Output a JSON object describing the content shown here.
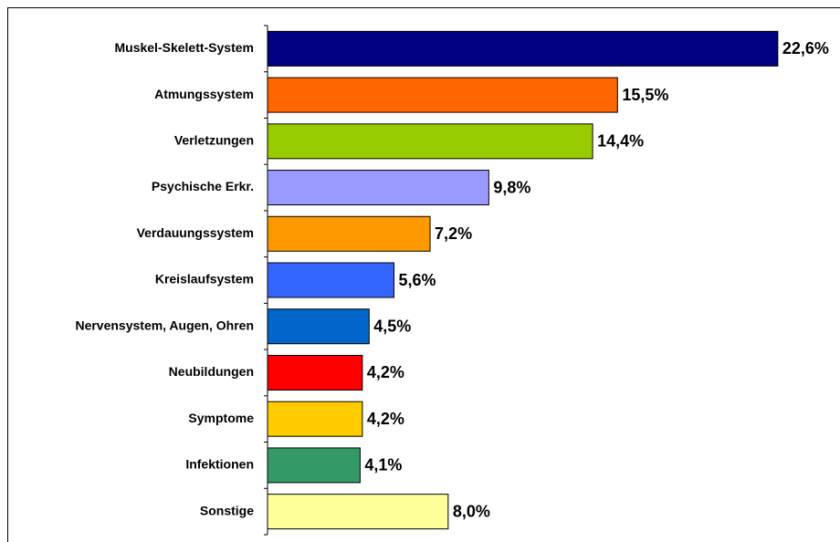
{
  "chart_data": {
    "type": "bar",
    "orientation": "horizontal",
    "categories": [
      "Muskel-Skelett-System",
      "Atmungssystem",
      "Verletzungen",
      "Psychische Erkr.",
      "Verdauungssystem",
      "Kreislaufsystem",
      "Nervensystem, Augen, Ohren",
      "Neubildungen",
      "Symptome",
      "Infektionen",
      "Sonstige"
    ],
    "values": [
      22.6,
      15.5,
      14.4,
      9.8,
      7.2,
      5.6,
      4.5,
      4.2,
      4.2,
      4.1,
      8.0
    ],
    "value_labels": [
      "22,6%",
      "15,5%",
      "14,4%",
      "9,8%",
      "7,2%",
      "5,6%",
      "4,5%",
      "4,2%",
      "4,2%",
      "4,1%",
      "8,0%"
    ],
    "colors": [
      "#000080",
      "#ff6600",
      "#99cc00",
      "#9999ff",
      "#ff9900",
      "#3366ff",
      "#0066cc",
      "#ff0000",
      "#ffcc00",
      "#339966",
      "#ffff99"
    ]
  }
}
